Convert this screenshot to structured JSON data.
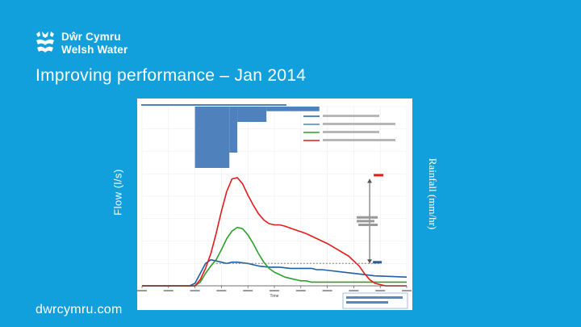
{
  "brand": {
    "name_line1": "Dŵr Cymru",
    "name_line2": "Welsh Water",
    "url": "dwrcymru.com"
  },
  "slide": {
    "title": "Improving performance – Jan 2014",
    "left_axis_label": "Flow (l/s)",
    "right_axis_label": "Rainfall (mm/hr)"
  },
  "colors": {
    "background": "#12a0dc",
    "rainfall": "#4f81bd",
    "before_flow": "#e31a1c",
    "after_flow": "#2ca02c",
    "blue_flow": "#1f5fa8",
    "reference": "#777777"
  },
  "chart_data": {
    "type": "line",
    "title": "",
    "xlabel": "Time",
    "ylabel": "Flow (l/s)",
    "y2label": "Rainfall (mm/hr)",
    "xlim": [
      0,
      100
    ],
    "ylim": [
      0,
      100
    ],
    "rain_max": 10,
    "series": [
      {
        "key": "blue",
        "x": [
          0,
          18,
          20,
          22,
          24,
          26,
          28,
          30,
          32,
          34,
          36,
          40,
          44,
          48,
          52,
          56,
          60,
          64,
          66,
          68,
          72,
          76,
          80,
          84,
          88,
          100
        ],
        "y": [
          0,
          0,
          2,
          10,
          18,
          21,
          20,
          19,
          18,
          19,
          19,
          18,
          16,
          15,
          15,
          14,
          14,
          14,
          13,
          13,
          12,
          11,
          10,
          9,
          8,
          7
        ]
      },
      {
        "key": "green",
        "x": [
          0,
          20,
          22,
          24,
          26,
          28,
          30,
          32,
          34,
          36,
          38,
          40,
          42,
          44,
          46,
          48,
          50,
          52,
          54,
          56,
          58,
          60,
          62,
          64,
          66,
          70,
          76,
          82,
          90,
          100
        ],
        "y": [
          0,
          0,
          3,
          10,
          16,
          21,
          29,
          38,
          44,
          47,
          46,
          41,
          34,
          26,
          19,
          14,
          11,
          9,
          7,
          6,
          5,
          4,
          4,
          3,
          3,
          3,
          3,
          3,
          3,
          3
        ]
      },
      {
        "key": "red",
        "x": [
          0,
          20,
          22,
          24,
          26,
          28,
          30,
          32,
          34,
          36,
          38,
          40,
          42,
          44,
          46,
          48,
          50,
          52,
          54,
          58,
          62,
          66,
          70,
          74,
          78,
          82,
          84,
          86,
          88,
          90,
          92,
          94,
          96,
          100
        ],
        "y": [
          0,
          0,
          5,
          14,
          26,
          42,
          60,
          76,
          86,
          87,
          82,
          73,
          65,
          58,
          53,
          50,
          49,
          49,
          48,
          45,
          42,
          38,
          34,
          29,
          24,
          16,
          10,
          5,
          2,
          1,
          0,
          0,
          0,
          0
        ]
      }
    ],
    "rainfall": [
      {
        "x0": 20,
        "x1": 33,
        "value": 4
      },
      {
        "x0": 33,
        "x1": 36,
        "value": 3
      },
      {
        "x0": 36,
        "x1": 47,
        "value": 1
      },
      {
        "x0": 47,
        "x1": 67,
        "value": 0.3
      }
    ],
    "reference_value": 18,
    "peak_marker_x": 86
  }
}
